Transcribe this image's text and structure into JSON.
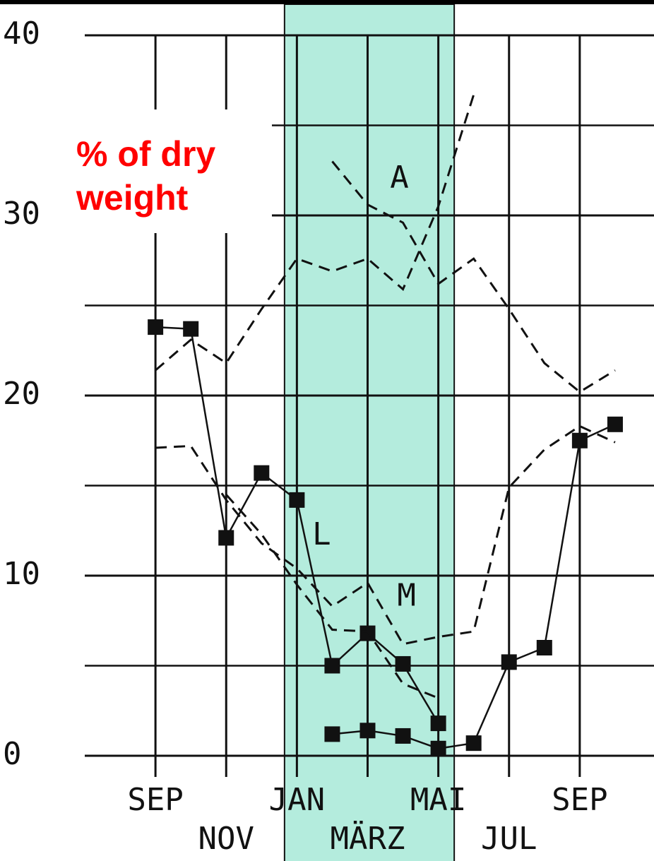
{
  "chart_data": {
    "type": "line",
    "ylabel": [
      "% of dry",
      "weight"
    ],
    "xlim": [
      -2,
      14.1
    ],
    "ylim": [
      0,
      40
    ],
    "yticks": [
      0,
      10,
      20,
      30,
      40
    ],
    "minor_yticks": [
      5,
      15,
      25,
      35
    ],
    "xticks": [
      {
        "value": 0,
        "label": "SEP"
      },
      {
        "value": 2,
        "label": "NOV"
      },
      {
        "value": 4,
        "label": "JAN"
      },
      {
        "value": 6,
        "label": "MÄRZ"
      },
      {
        "value": 8,
        "label": "MAI"
      },
      {
        "value": 10,
        "label": "JUL"
      },
      {
        "value": 12,
        "label": "SEP"
      }
    ],
    "grid": true,
    "shaded_span": {
      "xlim": [
        3.65,
        8.45
      ],
      "color": "#b4ecdd"
    },
    "x": [
      0,
      1,
      2,
      3,
      4,
      5,
      6,
      7,
      8,
      9,
      10,
      11,
      12,
      13
    ],
    "series": [
      {
        "name": "L",
        "color": "#111111",
        "dash": false,
        "marker": "square",
        "values": [
          23.8,
          23.7,
          12.1,
          15.7,
          14.2,
          5.0,
          6.8,
          5.1,
          1.8,
          null,
          null,
          null,
          null,
          null
        ]
      },
      {
        "color": "#111111",
        "dash": false,
        "marker": "square",
        "values": [
          null,
          null,
          null,
          null,
          null,
          1.2,
          1.4,
          1.1,
          0.4,
          0.7,
          5.2,
          6.0,
          17.5,
          18.4
        ]
      },
      {
        "color": "#111111",
        "dash": true,
        "values": [
          21.4,
          23.1,
          21.8,
          24.8,
          27.6,
          26.9,
          27.6,
          25.9,
          30.5,
          36.7,
          null,
          null,
          null,
          null
        ]
      },
      {
        "name": "A",
        "color": "#111111",
        "dash": true,
        "values": [
          null,
          null,
          null,
          null,
          null,
          33.0,
          30.6,
          29.6,
          26.2,
          27.6,
          24.8,
          21.8,
          20.2,
          21.4
        ]
      },
      {
        "name": "M",
        "color": "#111111",
        "dash": true,
        "values": [
          17.1,
          17.2,
          14.2,
          11.8,
          10.4,
          8.3,
          9.6,
          6.2,
          6.6,
          6.9,
          14.9,
          17.0,
          18.3,
          17.4
        ]
      },
      {
        "color": "#111111",
        "dash": true,
        "values": [
          null,
          null,
          14.5,
          12.3,
          9.5,
          7.0,
          6.9,
          4.0,
          3.2,
          null,
          null,
          null,
          null,
          null
        ]
      }
    ]
  }
}
